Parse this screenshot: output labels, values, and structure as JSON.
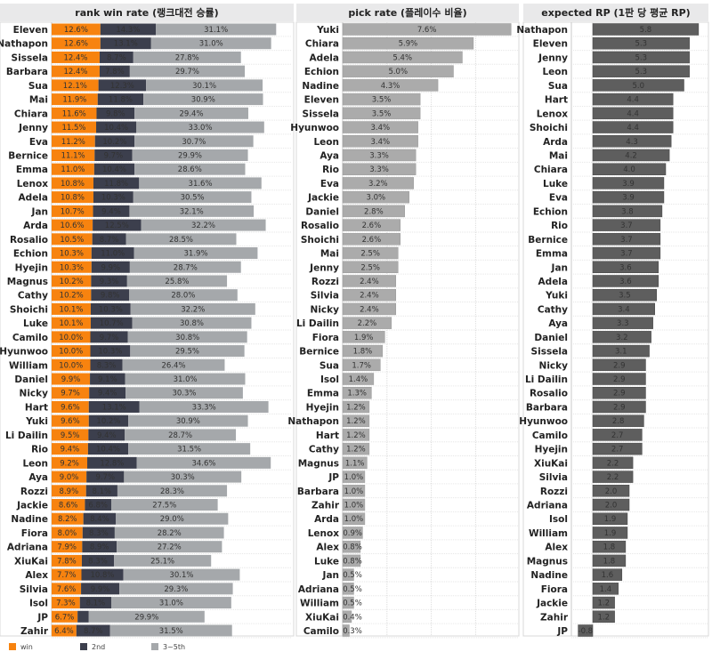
{
  "chart_data": [
    {
      "type": "bar",
      "orientation": "horizontal",
      "stacked": true,
      "title": "rank win rate (랭크대전 승률)",
      "legend": "bottom-left",
      "colors": {
        "win": "#f7830f",
        "2nd": "#3c3f4d",
        "3~5th": "#a5a8ab"
      },
      "categories": [
        "Eleven",
        "Nathapon",
        "Sissela",
        "Barbara",
        "Sua",
        "Mai",
        "Chiara",
        "Jenny",
        "Eva",
        "Bernice",
        "Emma",
        "Lenox",
        "Adela",
        "Jan",
        "Arda",
        "Rosalio",
        "Echion",
        "Hyejin",
        "Magnus",
        "Cathy",
        "Shoichi",
        "Luke",
        "Camilo",
        "Hyunwoo",
        "William",
        "Daniel",
        "Nicky",
        "Hart",
        "Yuki",
        "Li Dailin",
        "Rio",
        "Leon",
        "Aya",
        "Rozzi",
        "Jackie",
        "Nadine",
        "Fiora",
        "Adriana",
        "XiuKai",
        "Alex",
        "Silvia",
        "Isol",
        "JP",
        "Zahir"
      ],
      "series": [
        {
          "name": "win",
          "values": [
            12.6,
            12.6,
            12.4,
            12.4,
            12.1,
            11.9,
            11.6,
            11.5,
            11.2,
            11.1,
            11.0,
            10.8,
            10.8,
            10.7,
            10.6,
            10.5,
            10.3,
            10.3,
            10.2,
            10.2,
            10.1,
            10.1,
            10.0,
            10.0,
            10.0,
            9.9,
            9.7,
            9.6,
            9.6,
            9.5,
            9.4,
            9.2,
            9.0,
            8.9,
            8.6,
            8.2,
            8.0,
            7.9,
            7.8,
            7.7,
            7.6,
            7.3,
            6.7,
            6.4
          ]
        },
        {
          "name": "2nd",
          "values": [
            14.3,
            13.1,
            8.7,
            7.8,
            12.3,
            11.8,
            9.8,
            10.4,
            10.2,
            9.7,
            10.4,
            11.8,
            10.3,
            9.4,
            12.5,
            8.7,
            11.0,
            9.9,
            9.3,
            9.8,
            10.3,
            10.7,
            9.7,
            10.3,
            8.3,
            9.1,
            9.4,
            13.1,
            10.2,
            9.4,
            10.4,
            12.8,
            9.7,
            8.1,
            6.8,
            8.4,
            8.3,
            8.9,
            8.3,
            10.8,
            9.9,
            8.1,
            2.9,
            8.7
          ]
        },
        {
          "name": "3~5th",
          "values": [
            31.1,
            31.0,
            27.8,
            29.7,
            30.1,
            30.9,
            29.4,
            33.0,
            30.7,
            29.9,
            28.6,
            31.6,
            30.5,
            32.1,
            32.2,
            28.5,
            31.9,
            28.7,
            25.8,
            28.0,
            32.2,
            30.8,
            30.8,
            29.5,
            26.4,
            31.0,
            30.3,
            33.3,
            30.9,
            28.7,
            31.5,
            34.6,
            30.3,
            28.3,
            27.5,
            29.0,
            28.2,
            27.2,
            25.1,
            30.1,
            29.3,
            31.0,
            29.9,
            31.5
          ]
        }
      ],
      "unit": "%"
    },
    {
      "type": "bar",
      "orientation": "horizontal",
      "title": "pick rate (플레이수 비율)",
      "color": "#ababab",
      "grid": true,
      "categories": [
        "Yuki",
        "Chiara",
        "Adela",
        "Echion",
        "Nadine",
        "Eleven",
        "Sissela",
        "Hyunwoo",
        "Leon",
        "Aya",
        "Rio",
        "Eva",
        "Jackie",
        "Daniel",
        "Rosalio",
        "Shoichi",
        "Mai",
        "Jenny",
        "Rozzi",
        "Silvia",
        "Nicky",
        "Li Dailin",
        "Fiora",
        "Bernice",
        "Sua",
        "Isol",
        "Emma",
        "Hyejin",
        "Nathapon",
        "Hart",
        "Cathy",
        "Magnus",
        "JP",
        "Barbara",
        "Zahir",
        "Arda",
        "Lenox",
        "Alex",
        "Luke",
        "Jan",
        "Adriana",
        "William",
        "XiuKai",
        "Camilo"
      ],
      "values": [
        7.6,
        5.9,
        5.4,
        5.0,
        4.3,
        3.5,
        3.5,
        3.4,
        3.4,
        3.3,
        3.3,
        3.2,
        3.0,
        2.8,
        2.6,
        2.6,
        2.5,
        2.5,
        2.4,
        2.4,
        2.4,
        2.2,
        1.9,
        1.8,
        1.7,
        1.4,
        1.3,
        1.2,
        1.2,
        1.2,
        1.2,
        1.1,
        1.0,
        1.0,
        1.0,
        1.0,
        0.9,
        0.8,
        0.8,
        0.5,
        0.5,
        0.5,
        0.4,
        0.3
      ],
      "unit": "%",
      "xlim": [
        0,
        8
      ]
    },
    {
      "type": "bar",
      "orientation": "horizontal",
      "title": "expected RP (1판 당 평균 RP)",
      "color": "#5e5e5e",
      "categories": [
        "Nathapon",
        "Eleven",
        "Jenny",
        "Leon",
        "Sua",
        "Hart",
        "Lenox",
        "Shoichi",
        "Arda",
        "Mai",
        "Chiara",
        "Luke",
        "Eva",
        "Echion",
        "Rio",
        "Bernice",
        "Emma",
        "Jan",
        "Adela",
        "Yuki",
        "Cathy",
        "Aya",
        "Daniel",
        "Sissela",
        "Nicky",
        "Li Dailin",
        "Rosalio",
        "Barbara",
        "Hyunwoo",
        "Camilo",
        "Hyejin",
        "XiuKai",
        "Silvia",
        "Rozzi",
        "Adriana",
        "Isol",
        "William",
        "Alex",
        "Magnus",
        "Nadine",
        "Fiora",
        "Jackie",
        "Zahir",
        "JP"
      ],
      "values": [
        5.8,
        5.3,
        5.3,
        5.3,
        5.0,
        4.4,
        4.4,
        4.4,
        4.3,
        4.2,
        4.0,
        3.9,
        3.9,
        3.8,
        3.7,
        3.7,
        3.7,
        3.6,
        3.6,
        3.5,
        3.4,
        3.3,
        3.2,
        3.1,
        2.9,
        2.9,
        2.9,
        2.9,
        2.8,
        2.7,
        2.7,
        2.2,
        2.2,
        2.0,
        2.0,
        1.9,
        1.9,
        1.8,
        1.8,
        1.6,
        1.4,
        1.2,
        1.2,
        -0.8
      ],
      "xlim": [
        -1.1,
        6.1
      ]
    }
  ]
}
